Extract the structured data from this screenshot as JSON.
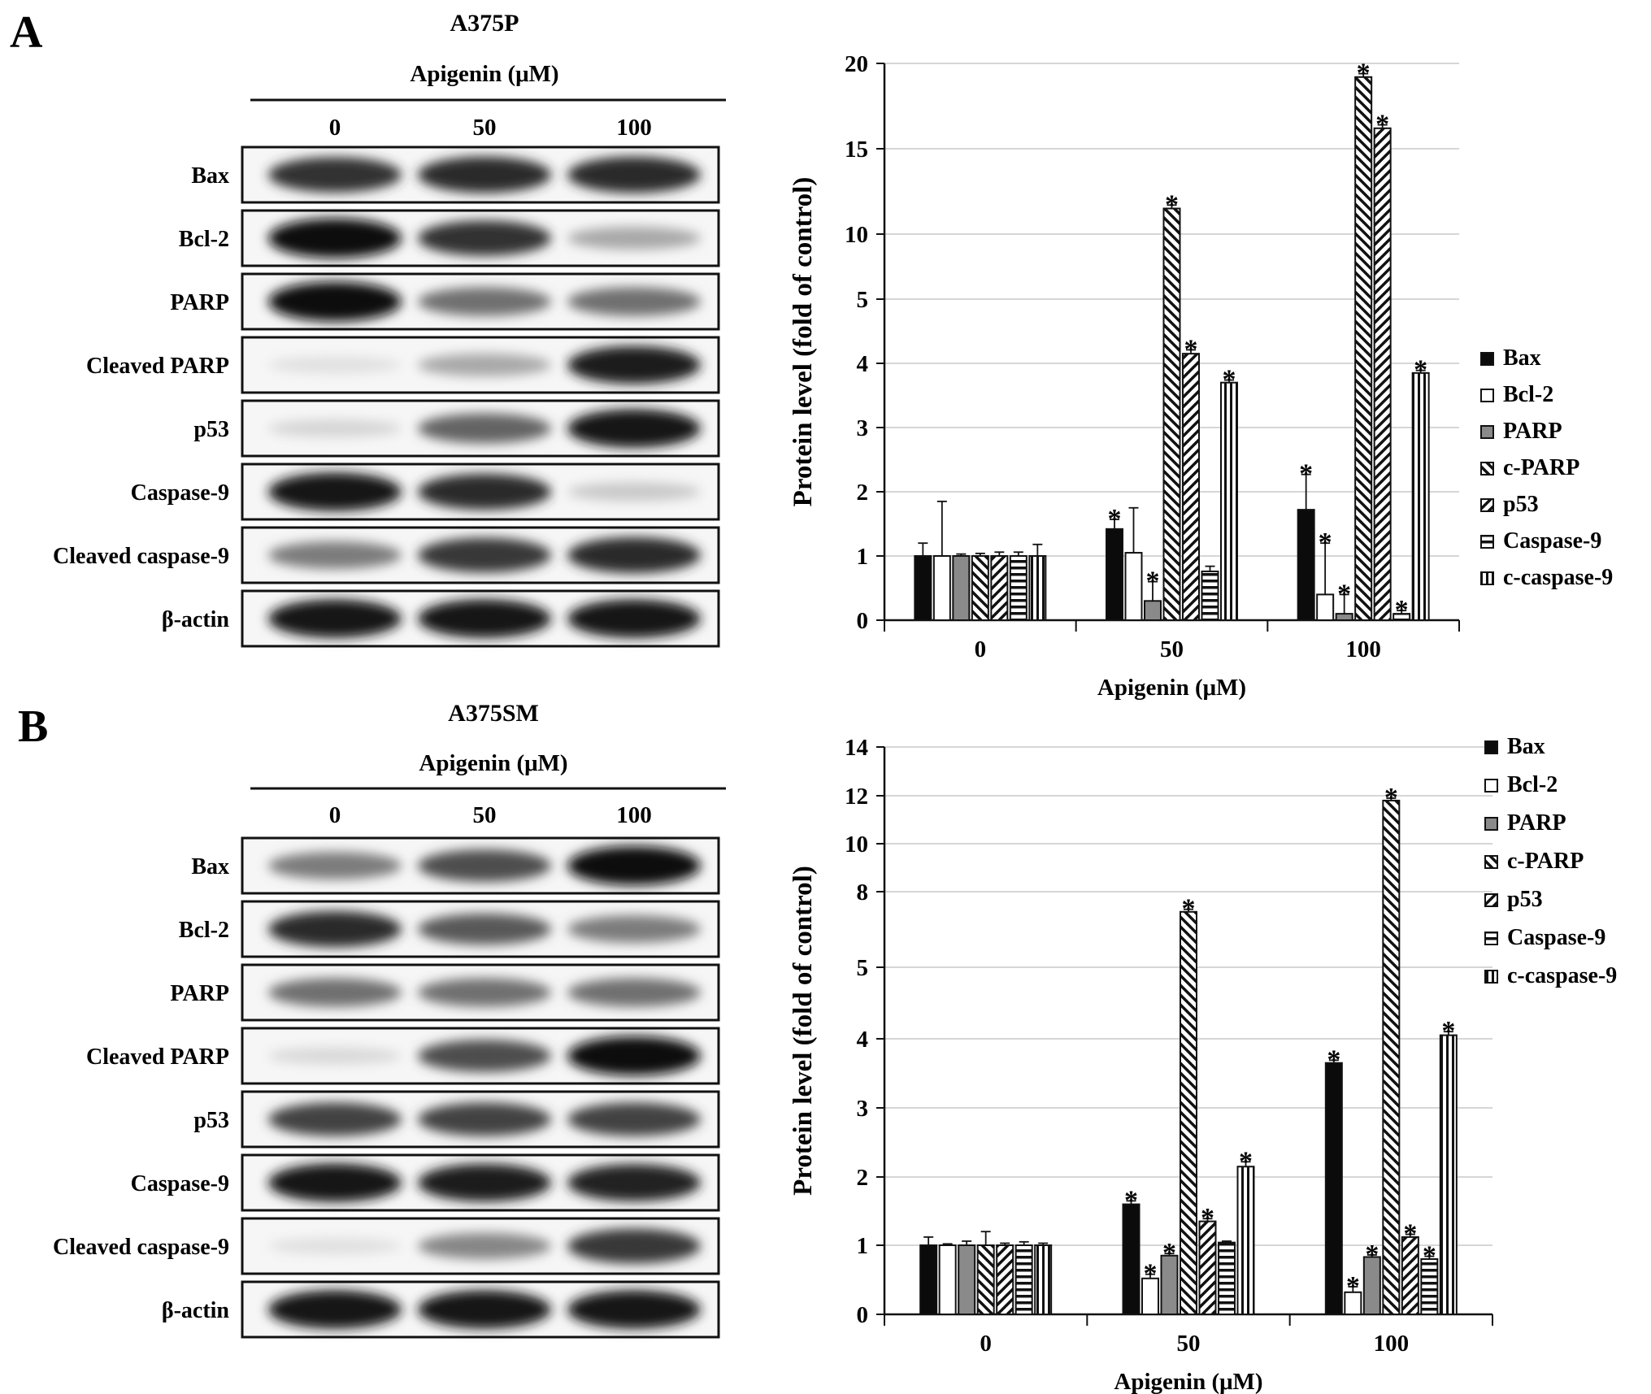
{
  "panels": [
    {
      "letter": "A",
      "cell_line": "A375P",
      "treatment_label": "Apigenin (μM)",
      "doses": [
        "0",
        "50",
        "100"
      ],
      "blot_rows": [
        {
          "label": "Bax",
          "intensity": [
            0.82,
            0.86,
            0.86
          ]
        },
        {
          "label": "Bcl-2",
          "intensity": [
            1.0,
            0.82,
            0.3
          ]
        },
        {
          "label": "PARP",
          "intensity": [
            1.0,
            0.55,
            0.55
          ]
        },
        {
          "label": "Cleaved PARP",
          "intensity": [
            0.05,
            0.3,
            0.92
          ]
        },
        {
          "label": "p53",
          "intensity": [
            0.1,
            0.6,
            0.95
          ]
        },
        {
          "label": "Caspase-9",
          "intensity": [
            0.95,
            0.85,
            0.15
          ]
        },
        {
          "label": "Cleaved caspase-9",
          "intensity": [
            0.5,
            0.8,
            0.85
          ]
        },
        {
          "label": "β-actin",
          "intensity": [
            0.95,
            0.95,
            0.95
          ]
        }
      ]
    },
    {
      "letter": "B",
      "cell_line": "A375SM",
      "treatment_label": "Apigenin (μM)",
      "doses": [
        "0",
        "50",
        "100"
      ],
      "blot_rows": [
        {
          "label": "Bax",
          "intensity": [
            0.5,
            0.7,
            0.98
          ]
        },
        {
          "label": "Bcl-2",
          "intensity": [
            0.85,
            0.65,
            0.5
          ]
        },
        {
          "label": "PARP",
          "intensity": [
            0.55,
            0.55,
            0.55
          ]
        },
        {
          "label": "Cleaved PARP",
          "intensity": [
            0.08,
            0.7,
            0.98
          ]
        },
        {
          "label": "p53",
          "intensity": [
            0.75,
            0.75,
            0.75
          ]
        },
        {
          "label": "Caspase-9",
          "intensity": [
            0.95,
            0.92,
            0.9
          ]
        },
        {
          "label": "Cleaved caspase-9",
          "intensity": [
            0.05,
            0.45,
            0.8
          ]
        },
        {
          "label": "β-actin",
          "intensity": [
            0.95,
            0.95,
            0.95
          ]
        }
      ]
    }
  ],
  "chart_data": [
    {
      "type": "bar",
      "title": "",
      "xlabel": "Apigenin (μM)",
      "ylabel": "Protein level (fold of control)",
      "categories": [
        "0",
        "50",
        "100"
      ],
      "yticks": [
        "0",
        "1",
        "2",
        "3",
        "4",
        "5",
        "10",
        "15",
        "20"
      ],
      "ylim": [
        0,
        20
      ],
      "scale": "piecewise: 0-4 linear, 4-20 compressed",
      "grid": true,
      "legend_position": "right",
      "significance_marker": "*",
      "series": [
        {
          "name": "Bax",
          "values": [
            1.0,
            1.42,
            1.72
          ],
          "errors": [
            0.2,
            0.15,
            0.55
          ],
          "sig": [
            false,
            true,
            true
          ]
        },
        {
          "name": "Bcl-2",
          "values": [
            1.0,
            1.05,
            0.4
          ],
          "errors": [
            0.85,
            0.7,
            0.8
          ],
          "sig": [
            false,
            false,
            true
          ]
        },
        {
          "name": "PARP",
          "values": [
            1.0,
            0.3,
            0.1
          ],
          "errors": [
            0.03,
            0.3,
            0.3
          ],
          "sig": [
            false,
            true,
            true
          ]
        },
        {
          "name": "c-PARP",
          "values": [
            1.0,
            11.5,
            19.2
          ],
          "errors": [
            0.04,
            0.2,
            0.2
          ],
          "sig": [
            false,
            true,
            true
          ]
        },
        {
          "name": "p53",
          "values": [
            1.0,
            4.15,
            16.2
          ],
          "errors": [
            0.06,
            0.06,
            0.2
          ],
          "sig": [
            false,
            true,
            true
          ]
        },
        {
          "name": "Caspase-9",
          "values": [
            1.0,
            0.76,
            0.1
          ],
          "errors": [
            0.06,
            0.08,
            0.05
          ],
          "sig": [
            false,
            false,
            true
          ]
        },
        {
          "name": "c-caspase-9",
          "values": [
            1.0,
            3.7,
            3.85
          ],
          "errors": [
            0.18,
            0.04,
            0.04
          ],
          "sig": [
            false,
            true,
            true
          ]
        }
      ]
    },
    {
      "type": "bar",
      "title": "",
      "xlabel": "Apigenin (μM)",
      "ylabel": "Protein level (fold of control)",
      "categories": [
        "0",
        "50",
        "100"
      ],
      "yticks": [
        "0",
        "1",
        "2",
        "3",
        "4",
        "5",
        "8",
        "10",
        "12",
        "14"
      ],
      "ylim": [
        0,
        14
      ],
      "scale": "piecewise: 0-4 linear, 4-14 compressed",
      "grid": true,
      "legend_position": "right",
      "significance_marker": "*",
      "series": [
        {
          "name": "Bax",
          "values": [
            1.0,
            1.6,
            3.65
          ],
          "errors": [
            0.12,
            0.05,
            0.04
          ],
          "sig": [
            false,
            true,
            true
          ]
        },
        {
          "name": "Bcl-2",
          "values": [
            1.0,
            0.52,
            0.32
          ],
          "errors": [
            0.02,
            0.06,
            0.08
          ],
          "sig": [
            false,
            true,
            true
          ]
        },
        {
          "name": "PARP",
          "values": [
            1.0,
            0.85,
            0.83
          ],
          "errors": [
            0.06,
            0.03,
            0.03
          ],
          "sig": [
            false,
            true,
            true
          ]
        },
        {
          "name": "c-PARP",
          "values": [
            1.0,
            7.2,
            11.8
          ],
          "errors": [
            0.2,
            0.1,
            0.1
          ],
          "sig": [
            false,
            true,
            true
          ]
        },
        {
          "name": "p53",
          "values": [
            1.0,
            1.35,
            1.12
          ],
          "errors": [
            0.03,
            0.04,
            0.04
          ],
          "sig": [
            false,
            true,
            true
          ]
        },
        {
          "name": "Caspase-9",
          "values": [
            1.0,
            1.04,
            0.8
          ],
          "errors": [
            0.05,
            0.02,
            0.04
          ],
          "sig": [
            false,
            false,
            true
          ]
        },
        {
          "name": "c-caspase-9",
          "values": [
            1.0,
            2.15,
            4.05
          ],
          "errors": [
            0.03,
            0.07,
            0.05
          ],
          "sig": [
            false,
            true,
            true
          ]
        }
      ]
    }
  ]
}
